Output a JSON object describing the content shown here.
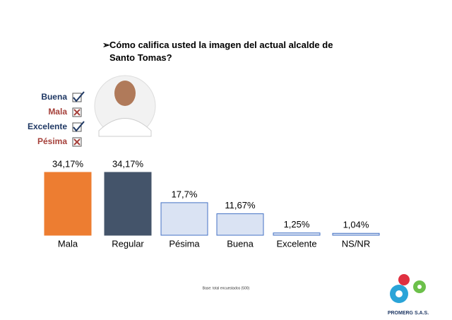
{
  "chart_data": {
    "type": "bar",
    "title": "Cómo califica usted la imagen del actual alcalde de Santo Tomas?",
    "categories": [
      "Mala",
      "Regular",
      "Pésima",
      "Buena",
      "Excelente",
      "NS/NR"
    ],
    "values": [
      34.17,
      34.17,
      17.7,
      11.67,
      1.25,
      1.04
    ],
    "value_labels": [
      "34,17%",
      "34,17%",
      "17,7%",
      "11,67%",
      "1,25%",
      "1,04%"
    ],
    "colors": [
      "#ed7d31",
      "#44546a",
      "#dae3f3",
      "#dae3f3",
      "#dae3f3",
      "#dae3f3"
    ],
    "edge_colors": [
      "#ed7d31",
      "#44546a",
      "#4472c4",
      "#4472c4",
      "#4472c4",
      "#4472c4"
    ]
  },
  "checklist": [
    {
      "label": "Buena",
      "checked": true,
      "color": "#1f3864"
    },
    {
      "label": "Mala",
      "checked": false,
      "color": "#a5403a"
    },
    {
      "label": "Excelente",
      "checked": true,
      "color": "#1f3864"
    },
    {
      "label": "Pésima",
      "checked": false,
      "color": "#a5403a"
    }
  ],
  "footnote": "Base: total encuestados (500)",
  "logo_text": "PROMERG S.A.S."
}
